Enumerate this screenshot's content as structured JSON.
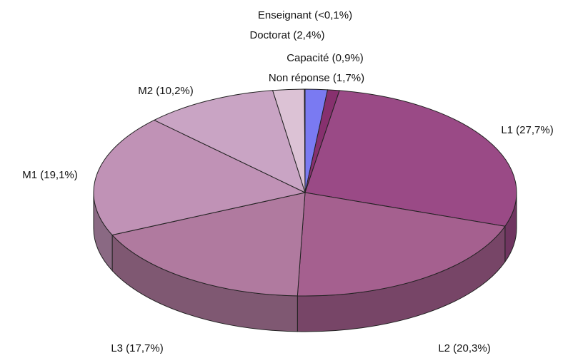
{
  "chart_data": {
    "type": "pie3d",
    "values": [
      1.7,
      0.9,
      27.7,
      20.3,
      17.7,
      19.1,
      10.2,
      2.4,
      0.05
    ],
    "value_labels": [
      "Non réponse (1,7%)",
      "Capacité (0,9%)",
      "L1 (27,7%)",
      "L2 (20,3%)",
      "L3 (17,7%)",
      "M1 (19,1%)",
      "M2 (10,2%)",
      "Doctorat (2,4%)",
      "Enseignant (<0,1%)"
    ],
    "colors": [
      "#7a7af2",
      "#87306e",
      "#9a4a86",
      "#a5608f",
      "#b07a9f",
      "#c092b6",
      "#c9a4c4",
      "#dcc2d5",
      "#5050c0"
    ]
  }
}
